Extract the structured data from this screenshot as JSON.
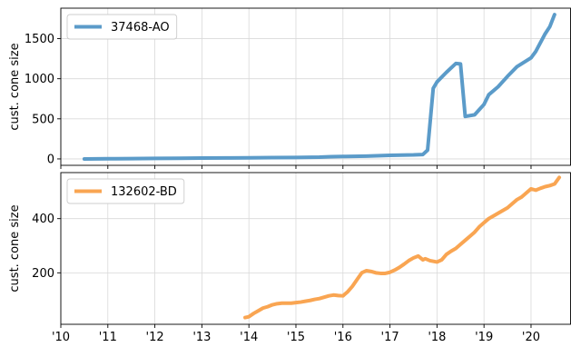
{
  "chart_data": [
    {
      "type": "line",
      "ylabel": "cust. cone size",
      "xlim": [
        2010.0,
        2020.85
      ],
      "ylim": [
        -80,
        1880
      ],
      "yticks": [
        0,
        500,
        1000,
        1500
      ],
      "grid": true,
      "legend": "top-left",
      "series": [
        {
          "name": "37468-AO",
          "color": "#5b9bc9",
          "x": [
            2010.5,
            2011.0,
            2011.5,
            2012.0,
            2012.5,
            2013.0,
            2013.5,
            2014.0,
            2014.5,
            2015.0,
            2015.5,
            2015.75,
            2016.0,
            2016.5,
            2017.0,
            2017.5,
            2017.7,
            2017.8,
            2017.92,
            2018.0,
            2018.2,
            2018.4,
            2018.5,
            2018.6,
            2018.8,
            2019.0,
            2019.1,
            2019.3,
            2019.5,
            2019.7,
            2020.0,
            2020.1,
            2020.2,
            2020.3,
            2020.4,
            2020.5
          ],
          "y": [
            0,
            2,
            4,
            6,
            8,
            10,
            12,
            14,
            16,
            18,
            22,
            28,
            30,
            35,
            45,
            50,
            55,
            110,
            880,
            960,
            1080,
            1190,
            1185,
            530,
            550,
            680,
            800,
            900,
            1030,
            1150,
            1260,
            1340,
            1450,
            1560,
            1650,
            1800
          ]
        }
      ]
    },
    {
      "type": "line",
      "ylabel": "cust. cone size",
      "xlim": [
        2010.0,
        2020.85
      ],
      "ylim": [
        10,
        570
      ],
      "yticks": [
        200,
        400
      ],
      "xticks": [
        2010,
        2011,
        2012,
        2013,
        2014,
        2015,
        2016,
        2017,
        2018,
        2019,
        2020
      ],
      "xticklabels": [
        "'10",
        "'11",
        "'12",
        "'13",
        "'14",
        "'15",
        "'16",
        "'17",
        "'18",
        "'19",
        "'20"
      ],
      "grid": true,
      "legend": "top-left",
      "series": [
        {
          "name": "132602-BD",
          "color": "#f9a552",
          "x": [
            2013.92,
            2014.0,
            2014.1,
            2014.2,
            2014.3,
            2014.4,
            2014.5,
            2014.6,
            2014.7,
            2014.8,
            2014.9,
            2015.0,
            2015.1,
            2015.2,
            2015.3,
            2015.4,
            2015.5,
            2015.6,
            2015.7,
            2015.8,
            2015.9,
            2016.0,
            2016.1,
            2016.2,
            2016.3,
            2016.4,
            2016.5,
            2016.6,
            2016.7,
            2016.8,
            2016.9,
            2017.0,
            2017.1,
            2017.2,
            2017.3,
            2017.4,
            2017.5,
            2017.6,
            2017.7,
            2017.75,
            2017.85,
            2018.0,
            2018.1,
            2018.2,
            2018.3,
            2018.4,
            2018.5,
            2018.6,
            2018.7,
            2018.8,
            2018.9,
            2019.0,
            2019.1,
            2019.2,
            2019.3,
            2019.4,
            2019.5,
            2019.6,
            2019.7,
            2019.8,
            2019.9,
            2020.0,
            2020.1,
            2020.2,
            2020.3,
            2020.4,
            2020.5,
            2020.6
          ],
          "y": [
            35,
            38,
            50,
            60,
            70,
            75,
            82,
            86,
            88,
            88,
            88,
            90,
            92,
            95,
            98,
            102,
            105,
            110,
            115,
            118,
            116,
            115,
            130,
            150,
            175,
            200,
            208,
            205,
            200,
            198,
            198,
            202,
            210,
            220,
            232,
            245,
            255,
            262,
            248,
            252,
            245,
            240,
            248,
            268,
            280,
            290,
            305,
            320,
            335,
            350,
            370,
            385,
            400,
            410,
            420,
            430,
            440,
            455,
            470,
            480,
            495,
            510,
            505,
            512,
            518,
            522,
            528,
            552
          ]
        }
      ]
    }
  ]
}
